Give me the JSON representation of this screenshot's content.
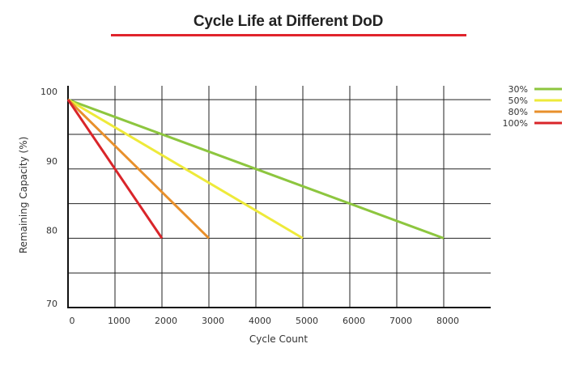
{
  "chart_data": {
    "type": "line",
    "title": "Cycle Life at Different DoD",
    "xlabel": "Cycle Count",
    "ylabel": "Remaining Capacity (%)",
    "xlim": [
      0,
      9000
    ],
    "ylim": [
      70,
      102
    ],
    "x_ticks": [
      0,
      1000,
      2000,
      3000,
      4000,
      5000,
      6000,
      7000,
      8000
    ],
    "x_tick_labels": [
      "0",
      "1000",
      "2000",
      "3000",
      "4000",
      "5000",
      "6000",
      "7000",
      "8000"
    ],
    "y_ticks": [
      70,
      80,
      90,
      100
    ],
    "y_tick_labels": [
      "70",
      "80",
      "90",
      "100"
    ],
    "grid": true,
    "legend_position": "top-right",
    "title_underline_color": "#e0242c",
    "series": [
      {
        "name": "30%",
        "color": "#8dc63f",
        "x": [
          0,
          8000
        ],
        "y": [
          100,
          80
        ]
      },
      {
        "name": "50%",
        "color": "#eeea3a",
        "x": [
          0,
          5000
        ],
        "y": [
          100,
          80
        ]
      },
      {
        "name": "80%",
        "color": "#e8902c",
        "x": [
          0,
          3000
        ],
        "y": [
          100,
          80
        ]
      },
      {
        "name": "100%",
        "color": "#d9252a",
        "x": [
          0,
          2000
        ],
        "y": [
          100,
          80
        ]
      }
    ]
  }
}
